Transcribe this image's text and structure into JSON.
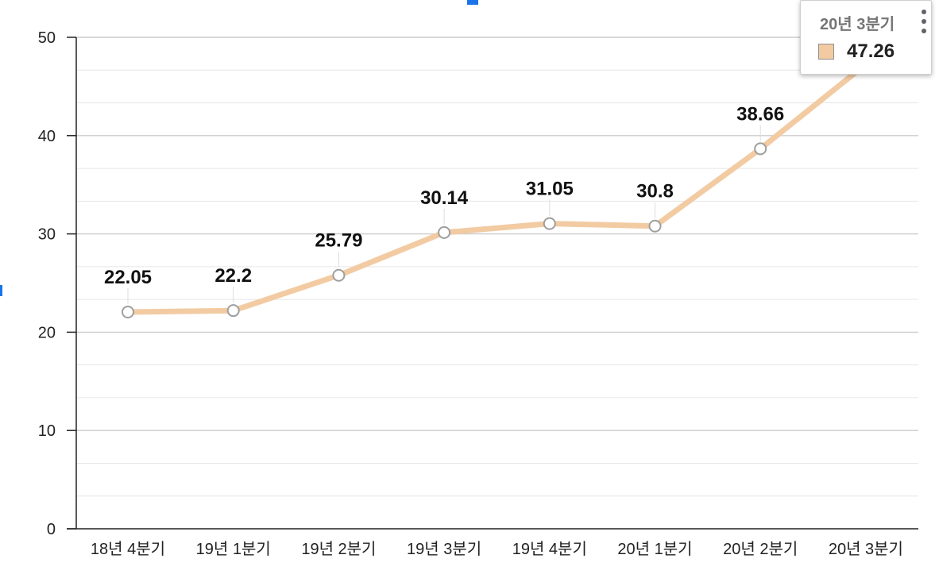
{
  "chart_data": {
    "type": "line",
    "categories": [
      "18년 4분기",
      "19년 1분기",
      "19년 2분기",
      "19년 3분기",
      "19년 4분기",
      "20년 1분기",
      "20년 2분기",
      "20년 3분기"
    ],
    "values": [
      22.05,
      22.2,
      25.79,
      30.14,
      31.05,
      30.8,
      38.66,
      47.26
    ],
    "data_labels": [
      "22.05",
      "22.2",
      "25.79",
      "30.14",
      "31.05",
      "30.8",
      "38.66",
      ""
    ],
    "ylim": [
      0,
      50
    ],
    "yticks": [
      0,
      10,
      20,
      30,
      40,
      50
    ],
    "y_minor_step": 3.3333,
    "grid": true,
    "line_color": "#f2cba3",
    "point_stroke_color": "#9e9e9e",
    "title": "",
    "xlabel": "",
    "ylabel": ""
  },
  "tooltip": {
    "title": "20년 3분기",
    "value": "47.26",
    "swatch_color": "#f2cba3"
  },
  "menu_icon": "more-vert-icon",
  "colors": {
    "gridline_major": "#cccccc",
    "gridline_minor": "#e6e6e6",
    "axis": "#222222",
    "edge_accent": "#1a73e8"
  }
}
